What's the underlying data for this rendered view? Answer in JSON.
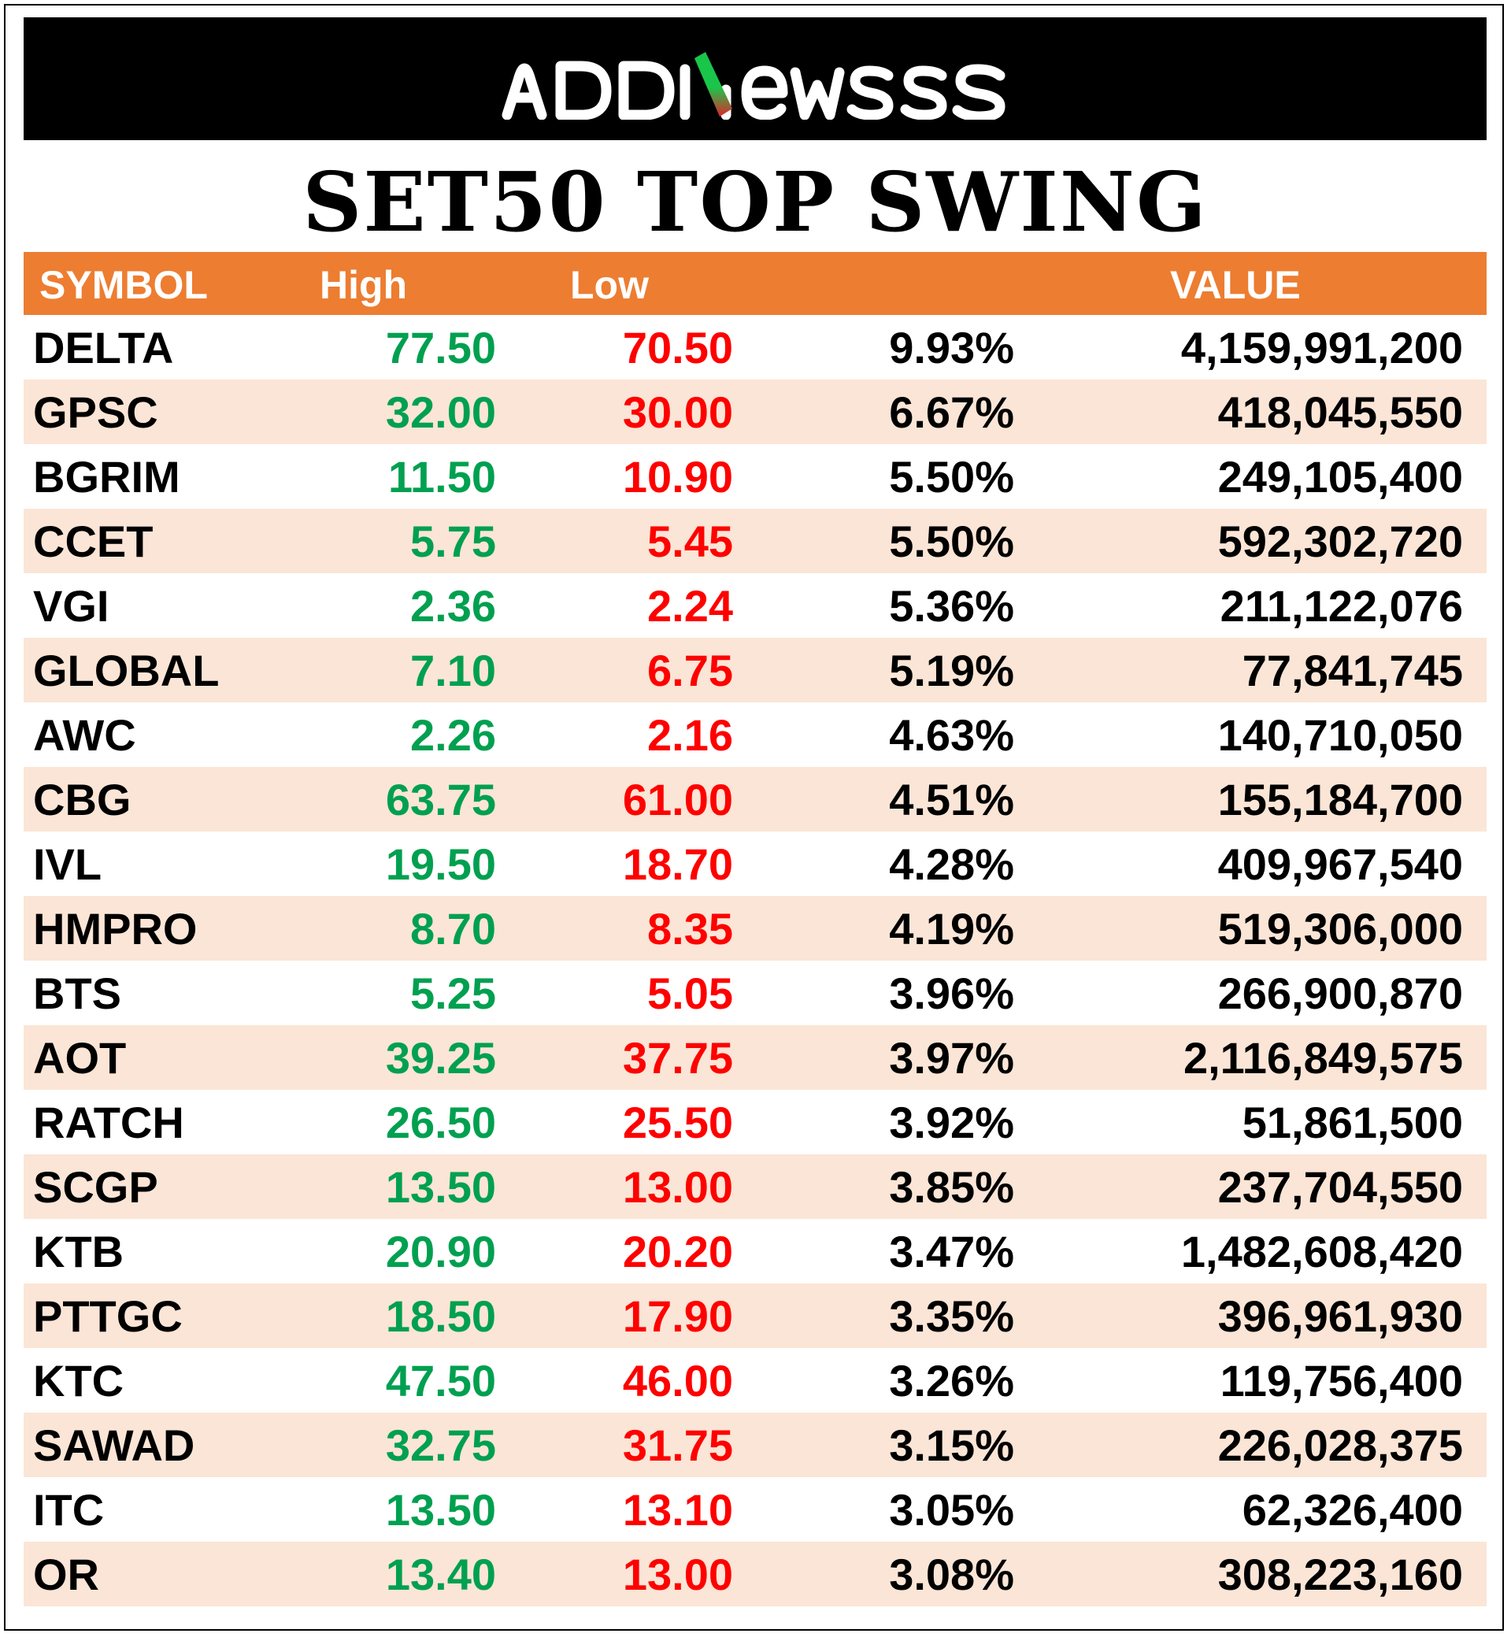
{
  "logo": {
    "text": "ADDNewss",
    "accent_gradient": [
      "#1AC64A",
      "#E0262B"
    ]
  },
  "title": "SET50 TOP SWING",
  "colors": {
    "header_bg": "#ED7D31",
    "row_shade": "#FBE5D6",
    "high": "#00A050",
    "low": "#FF0000"
  },
  "table": {
    "headers": {
      "symbol": "SYMBOL",
      "high": "High",
      "low": "Low",
      "change": "",
      "value": "VALUE"
    },
    "rows": [
      {
        "symbol": "DELTA",
        "high": "77.50",
        "low": "70.50",
        "change": "9.93%",
        "value": "4,159,991,200"
      },
      {
        "symbol": "GPSC",
        "high": "32.00",
        "low": "30.00",
        "change": "6.67%",
        "value": "418,045,550"
      },
      {
        "symbol": "BGRIM",
        "high": "11.50",
        "low": "10.90",
        "change": "5.50%",
        "value": "249,105,400"
      },
      {
        "symbol": "CCET",
        "high": "5.75",
        "low": "5.45",
        "change": "5.50%",
        "value": "592,302,720"
      },
      {
        "symbol": "VGI",
        "high": "2.36",
        "low": "2.24",
        "change": "5.36%",
        "value": "211,122,076"
      },
      {
        "symbol": "GLOBAL",
        "high": "7.10",
        "low": "6.75",
        "change": "5.19%",
        "value": "77,841,745"
      },
      {
        "symbol": "AWC",
        "high": "2.26",
        "low": "2.16",
        "change": "4.63%",
        "value": "140,710,050"
      },
      {
        "symbol": "CBG",
        "high": "63.75",
        "low": "61.00",
        "change": "4.51%",
        "value": "155,184,700"
      },
      {
        "symbol": "IVL",
        "high": "19.50",
        "low": "18.70",
        "change": "4.28%",
        "value": "409,967,540"
      },
      {
        "symbol": "HMPRO",
        "high": "8.70",
        "low": "8.35",
        "change": "4.19%",
        "value": "519,306,000"
      },
      {
        "symbol": "BTS",
        "high": "5.25",
        "low": "5.05",
        "change": "3.96%",
        "value": "266,900,870"
      },
      {
        "symbol": "AOT",
        "high": "39.25",
        "low": "37.75",
        "change": "3.97%",
        "value": "2,116,849,575"
      },
      {
        "symbol": "RATCH",
        "high": "26.50",
        "low": "25.50",
        "change": "3.92%",
        "value": "51,861,500"
      },
      {
        "symbol": "SCGP",
        "high": "13.50",
        "low": "13.00",
        "change": "3.85%",
        "value": "237,704,550"
      },
      {
        "symbol": "KTB",
        "high": "20.90",
        "low": "20.20",
        "change": "3.47%",
        "value": "1,482,608,420"
      },
      {
        "symbol": "PTTGC",
        "high": "18.50",
        "low": "17.90",
        "change": "3.35%",
        "value": "396,961,930"
      },
      {
        "symbol": "KTC",
        "high": "47.50",
        "low": "46.00",
        "change": "3.26%",
        "value": "119,756,400"
      },
      {
        "symbol": "SAWAD",
        "high": "32.75",
        "low": "31.75",
        "change": "3.15%",
        "value": "226,028,375"
      },
      {
        "symbol": "ITC",
        "high": "13.50",
        "low": "13.10",
        "change": "3.05%",
        "value": "62,326,400"
      },
      {
        "symbol": "OR",
        "high": "13.40",
        "low": "13.00",
        "change": "3.08%",
        "value": "308,223,160"
      }
    ]
  }
}
